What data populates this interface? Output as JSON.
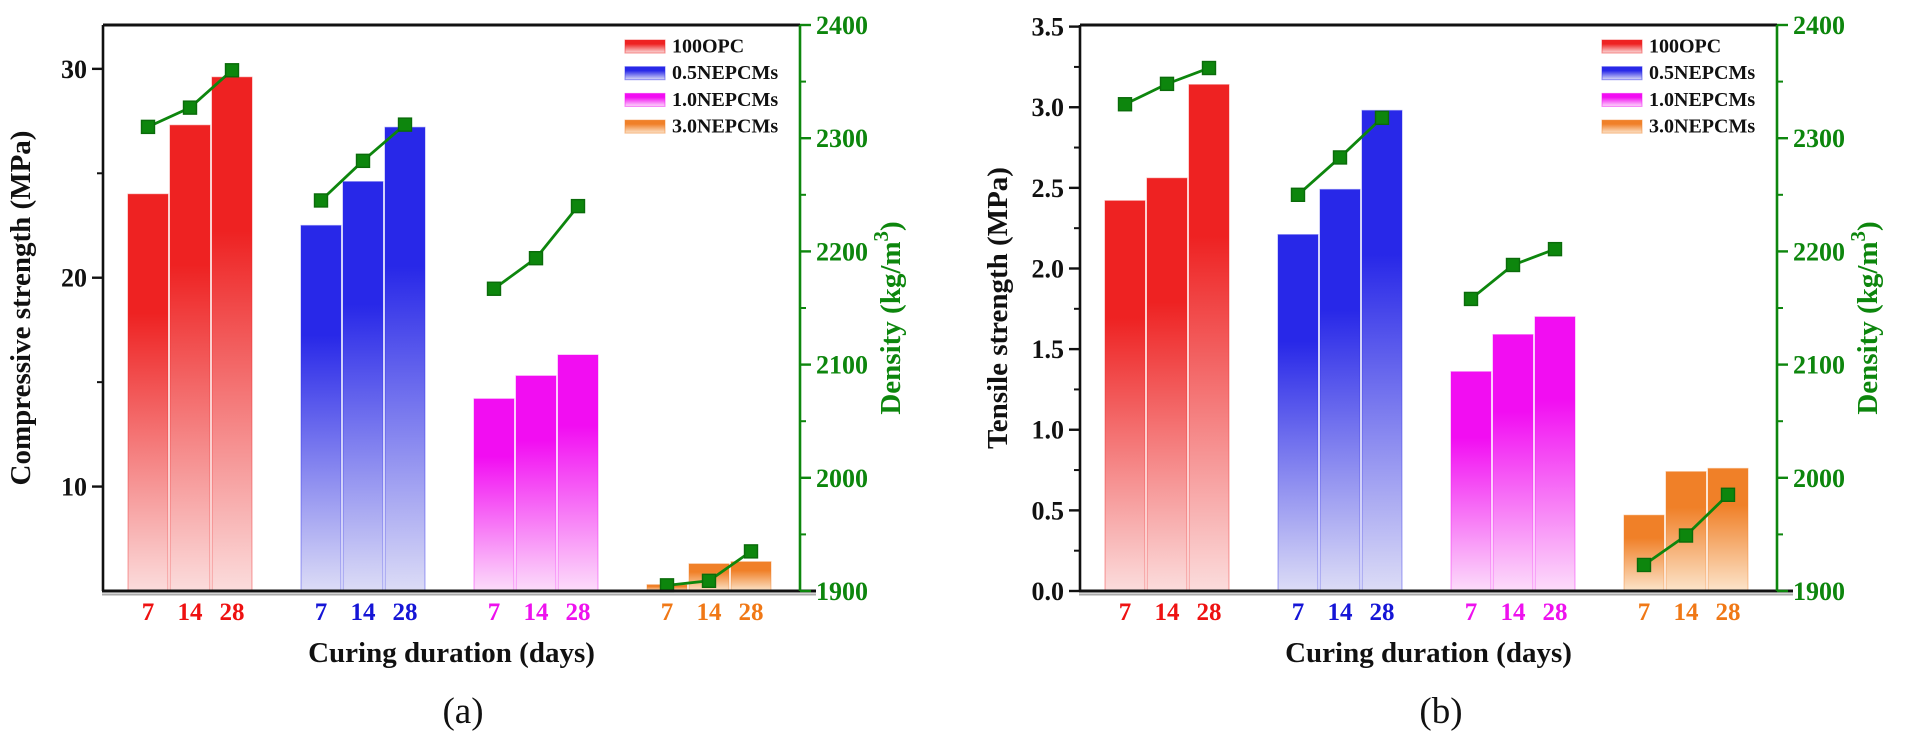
{
  "figure": {
    "captions": {
      "a": "(a)",
      "b": "(b)"
    }
  },
  "colors": {
    "line_green": "#0d860d",
    "line_green_dark": "#0a6b0a",
    "axis_black": "#111111",
    "axis_shadow": "#aaaaaa"
  },
  "chart_data": [
    {
      "type": "bar",
      "panel": "a",
      "xlabel": "Curing duration (days)",
      "ylabel": "Compressive strength (MPa)",
      "y2label": "Density (kg/m³)",
      "categories": [
        "7",
        "14",
        "28"
      ],
      "legend": [
        "100OPC",
        "0.5NEPCMs",
        "1.0NEPCMs",
        "3.0NEPCMs"
      ],
      "legend_position": "top-right",
      "grid": false,
      "ylim": [
        5,
        32.1
      ],
      "yticks": [
        "10",
        "20",
        "30"
      ],
      "ytick_values": [
        10,
        20,
        30
      ],
      "yminor_values": [
        15,
        25
      ],
      "y2lim": [
        1900,
        2400
      ],
      "y2ticks": [
        "1900",
        "2000",
        "2100",
        "2200",
        "2300",
        "2400"
      ],
      "y2tick_values": [
        1900,
        2000,
        2100,
        2200,
        2300,
        2400
      ],
      "y2minor_values": [
        1950,
        2050,
        2150,
        2250,
        2350
      ],
      "series": [
        {
          "name": "100OPC",
          "bar_color": "#ee2222",
          "bar_fade": "#fbdcdc",
          "tick_color": "#ee1111",
          "bars": [
            24.0,
            27.3,
            29.6
          ],
          "density_line": [
            2310,
            2327,
            2360
          ]
        },
        {
          "name": "0.5NEPCMs",
          "bar_color": "#2828e8",
          "bar_fade": "#dcdcf6",
          "tick_color": "#1515d6",
          "bars": [
            22.5,
            24.6,
            27.2
          ],
          "density_line": [
            2245,
            2280,
            2312
          ]
        },
        {
          "name": "1.0NEPCMs",
          "bar_color": "#f20df2",
          "bar_fade": "#fcdcfa",
          "tick_color": "#ee11ee",
          "bars": [
            14.2,
            15.3,
            16.3
          ],
          "density_line": [
            2167,
            2194,
            2240
          ]
        },
        {
          "name": "3.0NEPCMs",
          "bar_color": "#f08028",
          "bar_fade": "#fce4ca",
          "tick_color": "#f07816",
          "bars": [
            5.3,
            6.3,
            6.4
          ],
          "density_line": [
            1905,
            1909,
            1935
          ]
        }
      ]
    },
    {
      "type": "bar",
      "panel": "b",
      "xlabel": "Curing duration (days)",
      "ylabel": "Tensile strength (MPa)",
      "y2label": "Density (kg/m³)",
      "categories": [
        "7",
        "14",
        "28"
      ],
      "legend": [
        "100OPC",
        "0.5NEPCMs",
        "1.0NEPCMs",
        "3.0NEPCMs"
      ],
      "legend_position": "top-right",
      "grid": false,
      "ylim": [
        0,
        3.51
      ],
      "yticks": [
        "0.0",
        "0.5",
        "1.0",
        "1.5",
        "2.0",
        "2.5",
        "3.0",
        "3.5"
      ],
      "ytick_values": [
        0,
        0.5,
        1.0,
        1.5,
        2.0,
        2.5,
        3.0,
        3.5
      ],
      "yminor_values": [
        0.25,
        0.75,
        1.25,
        1.75,
        2.25,
        2.75,
        3.25
      ],
      "y2lim": [
        1900,
        2400
      ],
      "y2ticks": [
        "1900",
        "2000",
        "2100",
        "2200",
        "2300",
        "2400"
      ],
      "y2tick_values": [
        1900,
        2000,
        2100,
        2200,
        2300,
        2400
      ],
      "y2minor_values": [
        1950,
        2050,
        2150,
        2250,
        2350
      ],
      "series": [
        {
          "name": "100OPC",
          "bar_color": "#ee2222",
          "bar_fade": "#fbdcdc",
          "tick_color": "#ee1111",
          "bars": [
            2.42,
            2.56,
            3.14
          ],
          "density_line": [
            2330,
            2348,
            2362
          ]
        },
        {
          "name": "0.5NEPCMs",
          "bar_color": "#2828e8",
          "bar_fade": "#dcdcf6",
          "tick_color": "#1515d6",
          "bars": [
            2.21,
            2.49,
            2.98
          ],
          "density_line": [
            2250,
            2283,
            2318
          ]
        },
        {
          "name": "1.0NEPCMs",
          "bar_color": "#f20df2",
          "bar_fade": "#fcdcfa",
          "tick_color": "#ee11ee",
          "bars": [
            1.36,
            1.59,
            1.7
          ],
          "density_line": [
            2158,
            2188,
            2202
          ]
        },
        {
          "name": "3.0NEPCMs",
          "bar_color": "#f08028",
          "bar_fade": "#fce4ca",
          "tick_color": "#f07816",
          "bars": [
            0.47,
            0.74,
            0.76
          ],
          "density_line": [
            1923,
            1949,
            1985
          ]
        }
      ]
    }
  ]
}
